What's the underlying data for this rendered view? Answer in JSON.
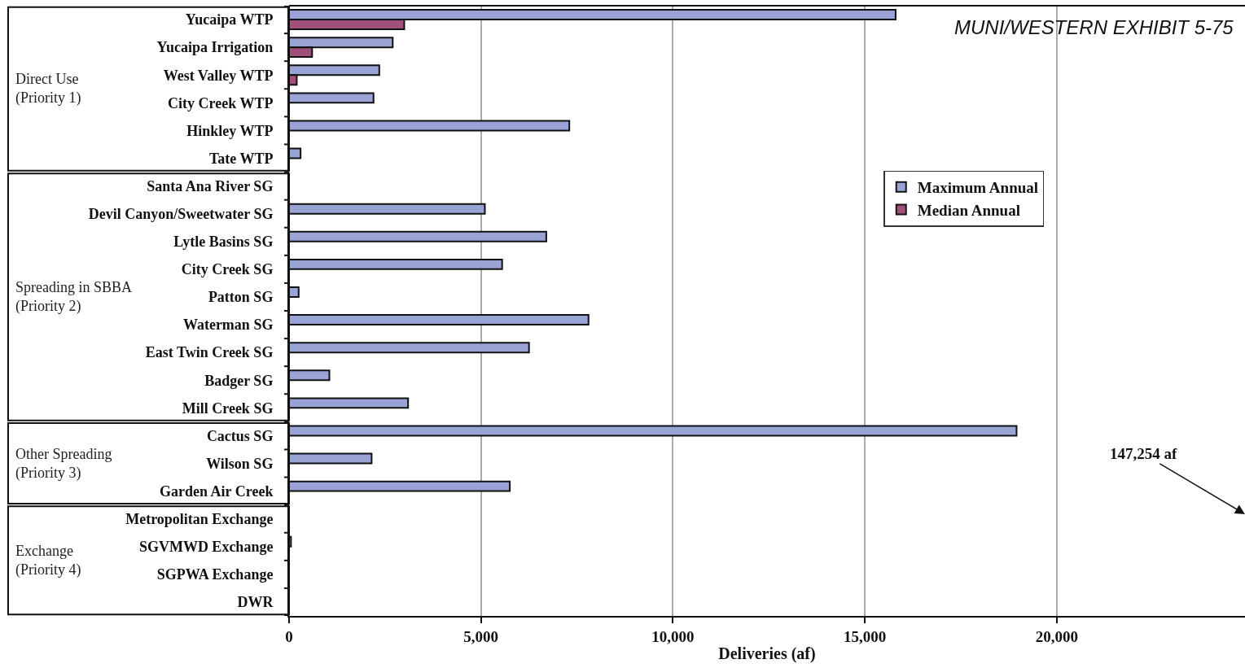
{
  "chart_data": {
    "type": "bar",
    "orientation": "horizontal",
    "xlabel": "Deliveries (af)",
    "categories": [
      "Yucaipa WTP",
      "Yucaipa Irrigation",
      "West Valley WTP",
      "City Creek WTP",
      "Hinkley WTP",
      "Tate WTP",
      "Santa Ana River SG",
      "Devil Canyon/Sweetwater SG",
      "Lytle Basins SG",
      "City Creek SG",
      "Patton SG",
      "Waterman SG",
      "East Twin Creek SG",
      "Badger SG",
      "Mill Creek SG",
      "Cactus SG",
      "Wilson SG",
      "Garden Air Creek",
      "Metropolitan Exchange",
      "SGVMWD Exchange",
      "SGPWA Exchange",
      "DWR"
    ],
    "series": [
      {
        "name": "Maximum Annual",
        "color": "#99a3d6",
        "values": [
          15800,
          2700,
          2350,
          2200,
          7300,
          300,
          0,
          5100,
          6700,
          5550,
          250,
          7800,
          6250,
          1050,
          3100,
          18950,
          2150,
          5750,
          null,
          50,
          0,
          0
        ],
        "value_labels": [
          null,
          null,
          null,
          null,
          null,
          null,
          null,
          null,
          null,
          null,
          null,
          null,
          null,
          null,
          null,
          null,
          null,
          null,
          "147,254 af",
          null,
          null,
          null
        ]
      },
      {
        "name": "Median Annual",
        "color": "#a0507a",
        "values": [
          3000,
          600,
          200,
          null,
          null,
          null,
          null,
          null,
          null,
          null,
          null,
          null,
          null,
          null,
          null,
          null,
          null,
          null,
          null,
          null,
          null,
          null
        ]
      }
    ],
    "xlim": [
      0,
      24900
    ],
    "xticks": [
      0,
      {
        "value": 5000,
        "label": "5,000"
      },
      {
        "value": 10000,
        "label": "10,000"
      },
      {
        "value": 15000,
        "label": "15,000"
      },
      {
        "value": 20000,
        "label": "20,000"
      }
    ],
    "grid": "x",
    "legend": "top right",
    "annotations": [
      "Direct Use\n(Priority 1)",
      "Spreading in SBBA\n(Priority 2)",
      "Other Spreading\n(Priority 3)",
      "Exchange\n(Priority 4)",
      "MUNI/WESTERN EXHIBIT 5-75"
    ]
  }
}
